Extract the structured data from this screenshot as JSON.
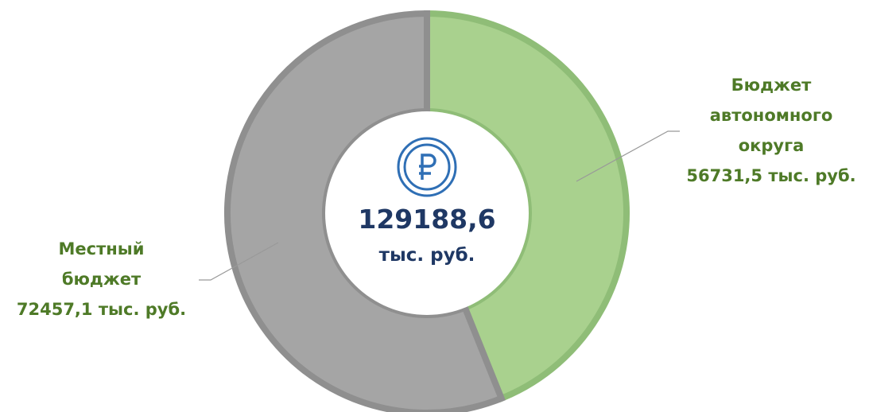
{
  "chart_data": {
    "type": "donut",
    "categories": [
      "Бюджет автономного округа",
      "Местный бюджет"
    ],
    "values": [
      56731.5,
      72457.1
    ],
    "value_labels": [
      "56731,5 тыс. руб.",
      "72457,1 тыс. руб."
    ],
    "colors": [
      "#a9d18e",
      "#a5a5a5"
    ],
    "stroke_colors": [
      "#8fbd77",
      "#8f8f8f"
    ],
    "center_value": "129188,6",
    "center_unit": "тыс. руб."
  }
}
